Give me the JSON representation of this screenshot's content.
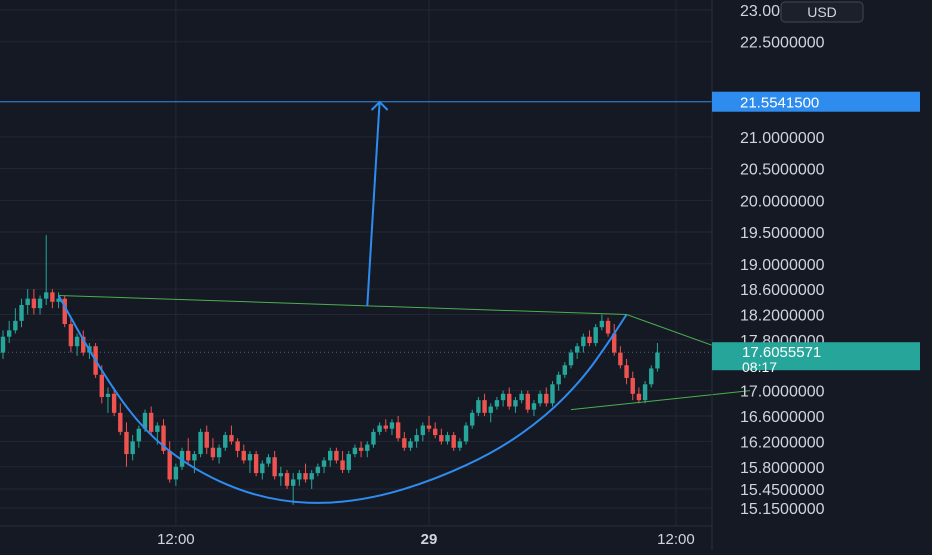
{
  "colors": {
    "background": "#151924",
    "grid": "#232733",
    "up": "#26a69a",
    "down": "#ef5350",
    "pattern": "#2f8cef",
    "trendline": "#4caf50",
    "axis_text": "#d1d4dc",
    "target_badge": "#2f8cef",
    "price_badge": "#26a69a"
  },
  "currency_button": {
    "label": "USD"
  },
  "target_price": {
    "value": 21.55415,
    "label": "21.5541500"
  },
  "current_price": {
    "value": 17.6055571,
    "label": "17.6055571",
    "countdown": "08:17"
  },
  "chart_data": {
    "type": "candlestick",
    "title": "",
    "y_axis": {
      "range": [
        15.0,
        23.2
      ],
      "ticks": [
        {
          "value": 23.0,
          "label": "23.0000000"
        },
        {
          "value": 22.5,
          "label": "22.5000000"
        },
        {
          "value": 21.0,
          "label": "21.0000000"
        },
        {
          "value": 20.5,
          "label": "20.5000000"
        },
        {
          "value": 20.0,
          "label": "20.0000000"
        },
        {
          "value": 19.5,
          "label": "19.5000000"
        },
        {
          "value": 19.0,
          "label": "19.0000000"
        },
        {
          "value": 18.6,
          "label": "18.6000000"
        },
        {
          "value": 18.2,
          "label": "18.2000000"
        },
        {
          "value": 17.8,
          "label": "17.8000000"
        },
        {
          "value": 17.0,
          "label": "17.0000000"
        },
        {
          "value": 16.6,
          "label": "16.6000000"
        },
        {
          "value": 16.2,
          "label": "16.2000000"
        },
        {
          "value": 15.8,
          "label": "15.8000000"
        },
        {
          "value": 15.45,
          "label": "15.4500000"
        },
        {
          "value": 15.15,
          "label": "15.1500000"
        }
      ]
    },
    "x_axis": {
      "range": [
        0,
        115
      ],
      "ticks": [
        {
          "index": 28,
          "label": "12:00",
          "bold": false
        },
        {
          "index": 69,
          "label": "29",
          "bold": true
        },
        {
          "index": 109,
          "label": "12:00",
          "bold": false
        }
      ]
    },
    "candles": [
      [
        17.6,
        17.95,
        17.5,
        17.85
      ],
      [
        17.85,
        18.1,
        17.75,
        17.95
      ],
      [
        17.95,
        18.3,
        17.9,
        18.1
      ],
      [
        18.1,
        18.45,
        18.0,
        18.35
      ],
      [
        18.35,
        18.6,
        18.2,
        18.45
      ],
      [
        18.45,
        18.6,
        18.2,
        18.3
      ],
      [
        18.3,
        18.5,
        18.2,
        18.45
      ],
      [
        18.45,
        19.45,
        18.35,
        18.55
      ],
      [
        18.55,
        18.6,
        18.3,
        18.4
      ],
      [
        18.4,
        18.55,
        18.3,
        18.45
      ],
      [
        18.45,
        18.5,
        18.0,
        18.05
      ],
      [
        18.05,
        18.15,
        17.6,
        17.7
      ],
      [
        17.7,
        17.9,
        17.55,
        17.85
      ],
      [
        17.85,
        17.95,
        17.55,
        17.6
      ],
      [
        17.6,
        17.75,
        17.5,
        17.7
      ],
      [
        17.7,
        17.75,
        17.2,
        17.25
      ],
      [
        17.25,
        17.4,
        16.8,
        16.9
      ],
      [
        16.9,
        17.05,
        16.65,
        16.95
      ],
      [
        16.95,
        17.05,
        16.6,
        16.65
      ],
      [
        16.65,
        16.8,
        16.3,
        16.35
      ],
      [
        16.35,
        16.5,
        15.8,
        16.0
      ],
      [
        16.0,
        16.3,
        15.9,
        16.2
      ],
      [
        16.2,
        16.45,
        16.1,
        16.4
      ],
      [
        16.4,
        16.7,
        16.35,
        16.65
      ],
      [
        16.65,
        16.75,
        16.3,
        16.35
      ],
      [
        16.35,
        16.5,
        16.15,
        16.45
      ],
      [
        16.45,
        16.55,
        16.0,
        16.05
      ],
      [
        16.05,
        16.2,
        15.55,
        15.6
      ],
      [
        15.6,
        15.85,
        15.5,
        15.8
      ],
      [
        15.8,
        16.1,
        15.75,
        16.05
      ],
      [
        16.05,
        16.25,
        15.85,
        15.9
      ],
      [
        15.9,
        16.05,
        15.7,
        16.0
      ],
      [
        16.0,
        16.4,
        15.95,
        16.35
      ],
      [
        16.35,
        16.45,
        16.0,
        16.1
      ],
      [
        16.1,
        16.25,
        15.9,
        15.95
      ],
      [
        15.95,
        16.15,
        15.85,
        16.1
      ],
      [
        16.1,
        16.35,
        16.05,
        16.3
      ],
      [
        16.3,
        16.45,
        16.15,
        16.2
      ],
      [
        16.2,
        16.25,
        15.95,
        16.05
      ],
      [
        16.05,
        16.15,
        15.85,
        15.9
      ],
      [
        15.9,
        16.05,
        15.7,
        16.0
      ],
      [
        16.0,
        16.05,
        15.65,
        15.7
      ],
      [
        15.7,
        15.9,
        15.6,
        15.85
      ],
      [
        15.85,
        16.0,
        15.8,
        15.95
      ],
      [
        15.95,
        16.05,
        15.6,
        15.65
      ],
      [
        15.65,
        15.8,
        15.5,
        15.7
      ],
      [
        15.7,
        15.75,
        15.45,
        15.5
      ],
      [
        15.5,
        15.7,
        15.2,
        15.6
      ],
      [
        15.6,
        15.75,
        15.5,
        15.7
      ],
      [
        15.7,
        15.85,
        15.55,
        15.6
      ],
      [
        15.6,
        15.75,
        15.45,
        15.7
      ],
      [
        15.7,
        15.85,
        15.65,
        15.8
      ],
      [
        15.8,
        15.95,
        15.7,
        15.9
      ],
      [
        15.9,
        16.1,
        15.8,
        16.05
      ],
      [
        16.05,
        16.1,
        15.85,
        15.9
      ],
      [
        15.9,
        16.05,
        15.7,
        15.75
      ],
      [
        15.75,
        16.05,
        15.7,
        16.0
      ],
      [
        16.0,
        16.15,
        15.95,
        16.1
      ],
      [
        16.1,
        16.2,
        15.95,
        16.05
      ],
      [
        16.05,
        16.2,
        15.95,
        16.15
      ],
      [
        16.15,
        16.4,
        16.1,
        16.35
      ],
      [
        16.35,
        16.5,
        16.3,
        16.45
      ],
      [
        16.45,
        16.55,
        16.35,
        16.4
      ],
      [
        16.4,
        16.55,
        16.3,
        16.5
      ],
      [
        16.5,
        16.6,
        16.2,
        16.25
      ],
      [
        16.25,
        16.35,
        16.05,
        16.1
      ],
      [
        16.1,
        16.25,
        16.05,
        16.2
      ],
      [
        16.2,
        16.4,
        16.1,
        16.3
      ],
      [
        16.3,
        16.5,
        16.2,
        16.45
      ],
      [
        16.45,
        16.6,
        16.35,
        16.4
      ],
      [
        16.4,
        16.5,
        16.25,
        16.3
      ],
      [
        16.3,
        16.4,
        16.15,
        16.2
      ],
      [
        16.2,
        16.35,
        16.15,
        16.3
      ],
      [
        16.3,
        16.35,
        16.05,
        16.1
      ],
      [
        16.1,
        16.25,
        16.05,
        16.2
      ],
      [
        16.2,
        16.5,
        16.15,
        16.45
      ],
      [
        16.45,
        16.7,
        16.4,
        16.65
      ],
      [
        16.65,
        16.9,
        16.6,
        16.85
      ],
      [
        16.85,
        16.95,
        16.6,
        16.65
      ],
      [
        16.65,
        16.8,
        16.5,
        16.75
      ],
      [
        16.75,
        16.9,
        16.7,
        16.85
      ],
      [
        16.85,
        17.0,
        16.75,
        16.95
      ],
      [
        16.95,
        17.05,
        16.7,
        16.75
      ],
      [
        16.75,
        16.9,
        16.65,
        16.85
      ],
      [
        16.85,
        17.0,
        16.8,
        16.95
      ],
      [
        16.95,
        17.0,
        16.65,
        16.7
      ],
      [
        16.7,
        16.85,
        16.6,
        16.8
      ],
      [
        16.8,
        17.0,
        16.75,
        16.95
      ],
      [
        16.95,
        17.05,
        16.75,
        16.8
      ],
      [
        16.8,
        17.15,
        16.75,
        17.1
      ],
      [
        17.1,
        17.3,
        17.0,
        17.25
      ],
      [
        17.25,
        17.45,
        17.2,
        17.4
      ],
      [
        17.4,
        17.65,
        17.35,
        17.6
      ],
      [
        17.6,
        17.75,
        17.5,
        17.7
      ],
      [
        17.7,
        17.9,
        17.6,
        17.85
      ],
      [
        17.85,
        17.95,
        17.7,
        17.75
      ],
      [
        17.75,
        18.05,
        17.7,
        18.0
      ],
      [
        18.0,
        18.2,
        17.95,
        18.1
      ],
      [
        18.1,
        18.15,
        17.85,
        17.9
      ],
      [
        17.9,
        18.05,
        17.55,
        17.6
      ],
      [
        17.6,
        17.7,
        17.35,
        17.4
      ],
      [
        17.4,
        17.5,
        17.1,
        17.2
      ],
      [
        17.2,
        17.3,
        16.85,
        16.95
      ],
      [
        16.95,
        17.05,
        16.8,
        16.85
      ],
      [
        16.85,
        17.15,
        16.8,
        17.1
      ],
      [
        17.1,
        17.4,
        17.05,
        17.35
      ],
      [
        17.35,
        17.75,
        17.3,
        17.6
      ]
    ],
    "shapes": {
      "cup_curve": [
        [
          9,
          18.5
        ],
        [
          15,
          17.45
        ],
        [
          22,
          16.45
        ],
        [
          30,
          15.8
        ],
        [
          40,
          15.35
        ],
        [
          50,
          15.2
        ],
        [
          60,
          15.3
        ],
        [
          70,
          15.6
        ],
        [
          80,
          16.05
        ],
        [
          88,
          16.6
        ],
        [
          94,
          17.2
        ],
        [
          98,
          17.75
        ],
        [
          101,
          18.2
        ]
      ],
      "neckline": [
        [
          9,
          18.5
        ],
        [
          101,
          18.2
        ]
      ],
      "flag_upper": [
        [
          101,
          18.2
        ],
        [
          121,
          17.5
        ]
      ],
      "flag_lower": [
        [
          92,
          16.7
        ],
        [
          121,
          17.0
        ]
      ],
      "arrow": {
        "from": [
          59,
          18.33
        ],
        "to": [
          61,
          21.55
        ]
      }
    }
  }
}
